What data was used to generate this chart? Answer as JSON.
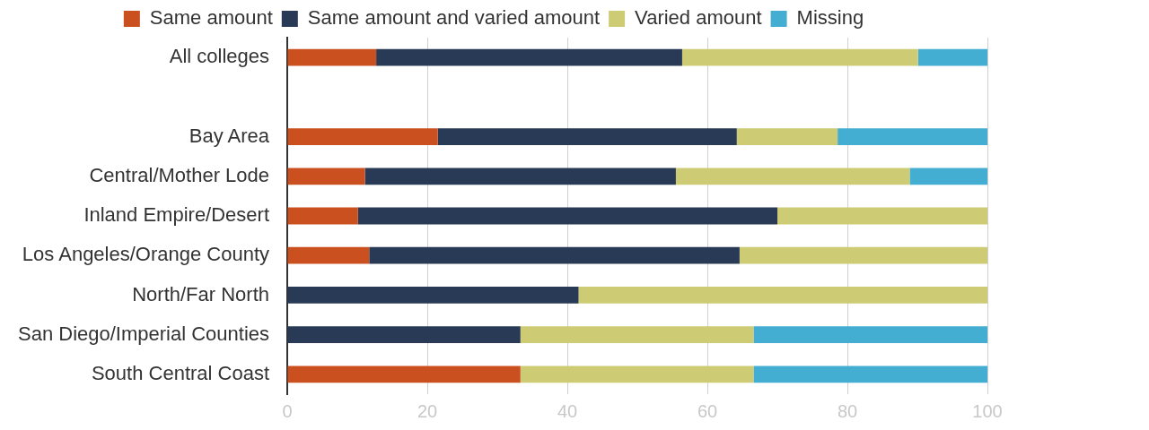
{
  "chart_data": {
    "type": "bar",
    "orientation": "horizontal",
    "stacked": true,
    "categories": [
      "All colleges",
      null,
      "Bay Area",
      "Central/Mother Lode",
      "Inland Empire/Desert",
      "Los Angeles/Orange County",
      "North/Far North",
      "San Diego/Imperial Counties",
      "South Central Coast"
    ],
    "series": [
      {
        "name": "Same amount",
        "color": "#cb5020",
        "values": [
          12.7,
          null,
          21.5,
          11.1,
          10.1,
          11.7,
          null,
          null,
          33.3
        ]
      },
      {
        "name": "Same amount and varied amount",
        "color": "#283a55",
        "values": [
          43.7,
          null,
          42.7,
          44.4,
          59.9,
          52.9,
          41.6,
          33.3,
          null
        ]
      },
      {
        "name": "Varied amount",
        "color": "#cdcb74",
        "values": [
          33.7,
          null,
          14.4,
          33.4,
          30.0,
          35.4,
          58.4,
          33.3,
          33.3
        ]
      },
      {
        "name": "Missing",
        "color": "#44aed2",
        "values": [
          9.9,
          null,
          21.4,
          11.1,
          null,
          null,
          null,
          33.4,
          33.4
        ]
      }
    ],
    "xlim": [
      0,
      100
    ],
    "xticks": [
      0,
      20,
      40,
      60,
      80,
      100
    ],
    "grid": "x",
    "legend": "top"
  }
}
